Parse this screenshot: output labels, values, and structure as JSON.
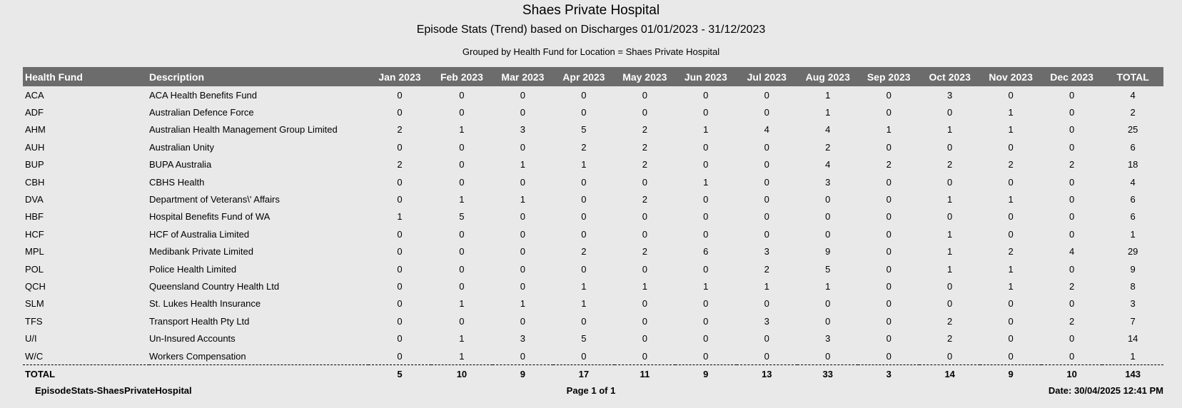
{
  "report": {
    "title": "Shaes Private Hospital",
    "subtitle": "Episode Stats (Trend) based on Discharges 01/01/2023 - 31/12/2023",
    "grouped_by": "Grouped by Health Fund for  Location = Shaes Private Hospital"
  },
  "table": {
    "headers": [
      "Health Fund",
      "Description",
      "Jan 2023",
      "Feb 2023",
      "Mar 2023",
      "Apr 2023",
      "May 2023",
      "Jun 2023",
      "Jul 2023",
      "Aug 2023",
      "Sep 2023",
      "Oct 2023",
      "Nov 2023",
      "Dec 2023",
      "TOTAL"
    ],
    "rows": [
      [
        "ACA",
        "ACA Health Benefits Fund",
        "0",
        "0",
        "0",
        "0",
        "0",
        "0",
        "0",
        "1",
        "0",
        "3",
        "0",
        "0",
        "4"
      ],
      [
        "ADF",
        "Australian Defence Force",
        "0",
        "0",
        "0",
        "0",
        "0",
        "0",
        "0",
        "1",
        "0",
        "0",
        "1",
        "0",
        "2"
      ],
      [
        "AHM",
        "Australian Health Management Group Limited",
        "2",
        "1",
        "3",
        "5",
        "2",
        "1",
        "4",
        "4",
        "1",
        "1",
        "1",
        "0",
        "25"
      ],
      [
        "AUH",
        "Australian Unity",
        "0",
        "0",
        "0",
        "2",
        "2",
        "0",
        "0",
        "2",
        "0",
        "0",
        "0",
        "0",
        "6"
      ],
      [
        "BUP",
        "BUPA Australia",
        "2",
        "0",
        "1",
        "1",
        "2",
        "0",
        "0",
        "4",
        "2",
        "2",
        "2",
        "2",
        "18"
      ],
      [
        "CBH",
        "CBHS Health",
        "0",
        "0",
        "0",
        "0",
        "0",
        "1",
        "0",
        "3",
        "0",
        "0",
        "0",
        "0",
        "4"
      ],
      [
        "DVA",
        "Department of Veterans\\' Affairs",
        "0",
        "1",
        "1",
        "0",
        "2",
        "0",
        "0",
        "0",
        "0",
        "1",
        "1",
        "0",
        "6"
      ],
      [
        "HBF",
        "Hospital Benefits Fund of WA",
        "1",
        "5",
        "0",
        "0",
        "0",
        "0",
        "0",
        "0",
        "0",
        "0",
        "0",
        "0",
        "6"
      ],
      [
        "HCF",
        "HCF of Australia Limited",
        "0",
        "0",
        "0",
        "0",
        "0",
        "0",
        "0",
        "0",
        "0",
        "1",
        "0",
        "0",
        "1"
      ],
      [
        "MPL",
        "Medibank Private Limited",
        "0",
        "0",
        "0",
        "2",
        "2",
        "6",
        "3",
        "9",
        "0",
        "1",
        "2",
        "4",
        "29"
      ],
      [
        "POL",
        "Police Health Limited",
        "0",
        "0",
        "0",
        "0",
        "0",
        "0",
        "2",
        "5",
        "0",
        "1",
        "1",
        "0",
        "9"
      ],
      [
        "QCH",
        "Queensland Country Health Ltd",
        "0",
        "0",
        "0",
        "1",
        "1",
        "1",
        "1",
        "1",
        "0",
        "0",
        "1",
        "2",
        "8"
      ],
      [
        "SLM",
        "St. Lukes Health Insurance",
        "0",
        "1",
        "1",
        "1",
        "0",
        "0",
        "0",
        "0",
        "0",
        "0",
        "0",
        "0",
        "3"
      ],
      [
        "TFS",
        "Transport Health Pty Ltd",
        "0",
        "0",
        "0",
        "0",
        "0",
        "0",
        "3",
        "0",
        "0",
        "2",
        "0",
        "2",
        "7"
      ],
      [
        "U/I",
        "Un-Insured Accounts",
        "0",
        "1",
        "3",
        "5",
        "0",
        "0",
        "0",
        "3",
        "0",
        "2",
        "0",
        "0",
        "14"
      ],
      [
        "W/C",
        "Workers Compensation",
        "0",
        "1",
        "0",
        "0",
        "0",
        "0",
        "0",
        "0",
        "0",
        "0",
        "0",
        "0",
        "1"
      ]
    ],
    "totals": [
      "TOTAL",
      "",
      "5",
      "10",
      "9",
      "17",
      "11",
      "9",
      "13",
      "33",
      "3",
      "14",
      "9",
      "10",
      "143"
    ]
  },
  "footer": {
    "report_name": "EpisodeStats-ShaesPrivateHospital",
    "page": "Page 1 of 1",
    "date": "Date: 30/04/2025 12:41 PM"
  }
}
